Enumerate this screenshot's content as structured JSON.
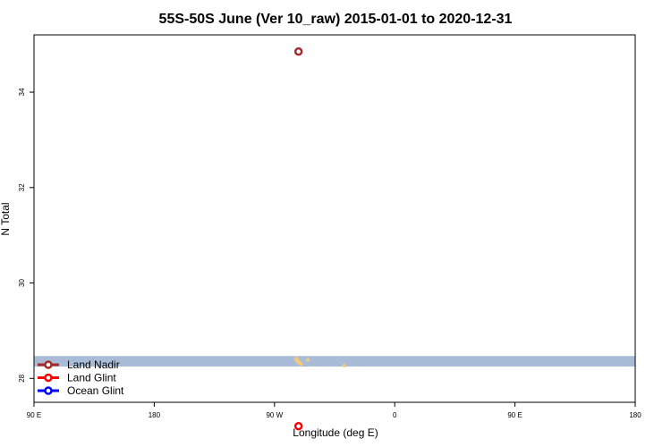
{
  "chart_data": {
    "type": "scatter",
    "title": "55S-50S June (Ver 10_raw)   2015-01-01 to 2020-12-31",
    "xlabel": "Longitude (deg E)",
    "ylabel": "N Total",
    "xlim": [
      90,
      540
    ],
    "ylim": [
      27.5,
      35.2
    ],
    "x_ticks": [
      {
        "value": 90,
        "label": "90 E"
      },
      {
        "value": 180,
        "label": "180"
      },
      {
        "value": 270,
        "label": "90 W"
      },
      {
        "value": 360,
        "label": "0"
      },
      {
        "value": 450,
        "label": "90 E"
      },
      {
        "value": 540,
        "label": "180"
      }
    ],
    "y_ticks": [
      {
        "value": 28,
        "label": "28"
      },
      {
        "value": 30,
        "label": "30"
      },
      {
        "value": 32,
        "label": "32"
      },
      {
        "value": 34,
        "label": "34"
      }
    ],
    "band": {
      "y_min": 28.25,
      "y_max": 28.47,
      "color": "#a8bcd8"
    },
    "series": [
      {
        "name": "Land Nadir",
        "color": "#a52a2a",
        "points": [
          {
            "x": 288,
            "y": 34.85
          }
        ]
      },
      {
        "name": "Land Glint",
        "color": "#ff0000",
        "points": [
          {
            "x": 288,
            "y": 27.0
          }
        ]
      },
      {
        "name": "Ocean Glint",
        "color": "#0000ff",
        "points": []
      }
    ],
    "minor_points": {
      "color": "#f5c87a",
      "points": [
        {
          "x": 286,
          "y": 28.4
        },
        {
          "x": 287,
          "y": 28.38
        },
        {
          "x": 288,
          "y": 28.36
        },
        {
          "x": 287.5,
          "y": 28.34
        },
        {
          "x": 289,
          "y": 28.32
        },
        {
          "x": 290,
          "y": 28.3
        },
        {
          "x": 286.5,
          "y": 28.42
        },
        {
          "x": 295,
          "y": 28.39
        },
        {
          "x": 322,
          "y": 28.27
        }
      ]
    },
    "legend": "bottom-left",
    "grid": false
  }
}
